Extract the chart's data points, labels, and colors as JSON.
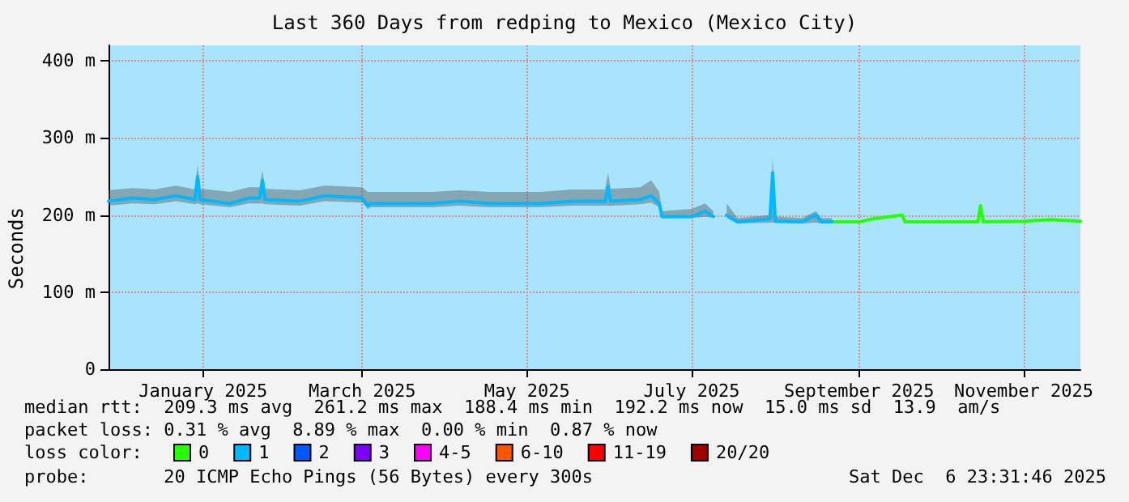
{
  "chart_data": {
    "type": "line",
    "title": "Last 360 Days from redping to Mexico (Mexico City)",
    "ylabel": "Seconds",
    "xlim": [
      "2024-12-11",
      "2025-12-06"
    ],
    "xticks": [
      {
        "value": "2025-01-15",
        "label": "January 2025"
      },
      {
        "value": "2025-03-15",
        "label": "March 2025"
      },
      {
        "value": "2025-05-15",
        "label": "May 2025"
      },
      {
        "value": "2025-07-15",
        "label": "July 2025"
      },
      {
        "value": "2025-09-15",
        "label": "September 2025"
      },
      {
        "value": "2025-11-15",
        "label": "November 2025"
      }
    ],
    "ylim": [
      0,
      420
    ],
    "yticks": [
      {
        "value": 0,
        "label": "0"
      },
      {
        "value": 100,
        "label": "100 m"
      },
      {
        "value": 200,
        "label": "200 m"
      },
      {
        "value": 300,
        "label": "300 m"
      },
      {
        "value": 400,
        "label": "400 m"
      }
    ],
    "grid": true,
    "legend": "bottom",
    "legend_title": "loss color:",
    "marker": "none",
    "line_style": "solid",
    "series": [
      {
        "name": "0",
        "color": "#26ff00",
        "x": [
          "2025-09-05",
          "2025-09-15",
          "2025-09-20",
          "2025-10-01",
          "2025-10-02",
          "2025-10-15",
          "2025-10-29",
          "2025-10-30",
          "2025-10-31",
          "2025-11-15",
          "2025-11-25",
          "2025-12-06"
        ],
        "values": [
          191,
          191,
          195,
          200,
          191,
          191,
          191,
          212,
          191,
          192,
          194,
          192
        ]
      },
      {
        "name": "1",
        "color": "#00b8ff",
        "x": [
          "2024-12-11",
          "2024-12-20",
          "2024-12-28",
          "2025-01-05",
          "2025-01-12",
          "2025-01-13",
          "2025-01-14",
          "2025-01-25",
          "2025-02-01",
          "2025-02-05",
          "2025-02-06",
          "2025-02-07",
          "2025-02-20",
          "2025-03-01",
          "2025-03-15",
          "2025-03-17",
          "2025-03-18",
          "2025-04-10",
          "2025-04-20",
          "2025-05-01",
          "2025-05-20",
          "2025-06-01",
          "2025-06-13",
          "2025-06-14",
          "2025-06-15",
          "2025-06-26",
          "2025-06-30",
          "2025-07-03",
          "2025-07-04",
          "2025-07-15",
          "2025-07-20",
          "2025-07-23",
          "2025-07-24",
          "2025-07-28",
          "2025-08-01",
          "2025-08-13",
          "2025-08-14",
          "2025-08-15",
          "2025-08-25",
          "2025-08-30",
          "2025-09-01",
          "2025-09-05"
        ],
        "values": [
          218,
          222,
          220,
          225,
          220,
          250,
          220,
          215,
          222,
          222,
          245,
          220,
          218,
          225,
          222,
          212,
          215,
          215,
          218,
          215,
          215,
          218,
          218,
          237,
          218,
          220,
          225,
          215,
          198,
          198,
          205,
          198,
          null,
          200,
          191,
          195,
          255,
          192,
          191,
          200,
          191,
          191
        ],
        "lower": [
          212,
          215,
          214,
          218,
          214,
          215,
          214,
          210,
          215,
          215,
          215,
          214,
          212,
          218,
          216,
          208,
          210,
          210,
          212,
          210,
          210,
          212,
          212,
          212,
          212,
          214,
          216,
          210,
          196,
          196,
          198,
          196,
          null,
          196,
          189,
          190,
          190,
          190,
          189,
          190,
          189,
          189
        ],
        "upper": [
          232,
          235,
          233,
          238,
          233,
          265,
          234,
          230,
          236,
          236,
          258,
          234,
          232,
          238,
          236,
          230,
          230,
          230,
          232,
          230,
          230,
          233,
          233,
          255,
          234,
          236,
          245,
          230,
          205,
          208,
          215,
          205,
          null,
          215,
          196,
          200,
          275,
          198,
          196,
          205,
          196,
          196
        ]
      },
      {
        "name": "2",
        "color": "#0059ff"
      },
      {
        "name": "3",
        "color": "#7e00ff"
      },
      {
        "name": "4-5",
        "color": "#ff00ff"
      },
      {
        "name": "6-10",
        "color": "#ff5500"
      },
      {
        "name": "11-19",
        "color": "#ff0000"
      },
      {
        "name": "20/20",
        "color": "#a10000"
      }
    ],
    "annotations": [
      "median rtt:  209.3 ms avg  261.2 ms max  188.4 ms min  192.2 ms now  15.0 ms sd  13.9  am/s",
      "packet loss: 0.31 % avg  8.89 % max  0.00 % min  0.87 % now",
      "probe:       20 ICMP Echo Pings (56 Bytes) every 300s",
      "Sat Dec  6 23:31:46 2025"
    ]
  }
}
